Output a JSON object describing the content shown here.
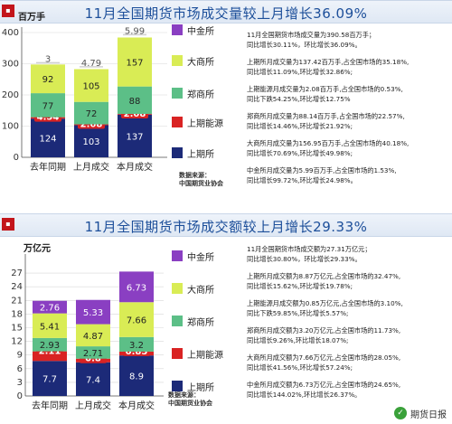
{
  "colors": {
    "shfe": "#1c2a78",
    "ine": "#d92323",
    "dce": "#d9ec55",
    "czce": "#5cbf87",
    "cffex": "#8a3fc2",
    "title": "#1d4f9a"
  },
  "charts": [
    {
      "title": "11月全国期货市场成交量较上月增长36.09%",
      "unit": "百万手",
      "source": [
        "数据来源：",
        "中国期货业协会"
      ],
      "notes": [
        [
          "11月全国期货市场成交量为390.58百万手；",
          "同比增长30.11%，环比增长36.09%。"
        ],
        [
          "上期所月成交量为137.42百万手,占全国市场的35.18%,",
          "同比增长11.09%,环比增长32.86%;"
        ],
        [
          "上期能源月成交量为2.08百万手,占全国市场的0.53%,",
          "同比下跌54.25%,环比增长12.75%"
        ],
        [
          "郑商所月成交量为88.14百万手,占全国市场的22.57%,",
          "同比增长14.46%,环比增长21.92%;"
        ],
        [
          "大商所月成交量为156.95百万手,占全国市场的40.18%,",
          "同比增长70.69%,环比增长49.98%;"
        ],
        [
          "中金所月成交量为5.99百万手,占全国市场的1.53%,",
          "同比增长99.72%,环比增长24.98%。"
        ]
      ]
    },
    {
      "title": "11月全国期货市场成交额较上月增长29.33%",
      "unit": "万亿元",
      "source": [
        "数据来源：",
        "中国期货业协会"
      ],
      "notes": [
        [
          "11月全国期货市场成交额为27.31万亿元；",
          "同比增长30.80%，环比增长29.33%。"
        ],
        [
          "上期所月成交额为8.87万亿元,占全国市场的32.47%,",
          "同比增长15.62%,环比增长19.78%;"
        ],
        [
          "上期能源月成交额为0.85万亿元,占全国市场的3.10%,",
          "同比下跌59.85%,环比增长5.57%;"
        ],
        [
          "郑商所月成交额为3.20万亿元,占全国市场的11.73%,",
          "同比增长9.26%,环比增长18.07%;"
        ],
        [
          "大商所月成交额为7.66万亿元,占全国市场的28.05%,",
          "同比增长41.56%,环比增长57.24%;"
        ],
        [
          "中金所月成交额为6.73万亿元,占全国市场的24.65%,",
          "同比增长144.02%,环比增长26.37%。"
        ]
      ]
    }
  ],
  "watermark": "期货日报",
  "chart_data": [
    {
      "type": "bar",
      "stacked": true,
      "title": "11月全国期货市场成交量较上月增长36.09%",
      "ylabel": "百万手",
      "ylim": [
        0,
        400
      ],
      "yticks": [
        0,
        100,
        200,
        300,
        400
      ],
      "categories": [
        "去年同期",
        "上月成交",
        "本月成交"
      ],
      "series": [
        {
          "name": "上期所",
          "key": "shfe",
          "values": [
            124,
            103,
            137
          ]
        },
        {
          "name": "上期能源",
          "key": "ine",
          "values": [
            4.54,
            2.68,
            2.08
          ]
        },
        {
          "name": "郑商所",
          "key": "czce",
          "values": [
            77,
            72,
            88
          ]
        },
        {
          "name": "大商所",
          "key": "dce",
          "values": [
            92,
            105,
            157
          ]
        },
        {
          "name": "中金所",
          "key": "cffex",
          "values": [
            3.0,
            4.79,
            5.99
          ]
        }
      ],
      "legend_order": [
        "中金所",
        "大商所",
        "郑商所",
        "上期能源",
        "上期所"
      ],
      "legend_position": "right"
    },
    {
      "type": "bar",
      "stacked": true,
      "title": "11月全国期货市场成交额较上月增长29.33%",
      "ylabel": "万亿元",
      "ylim": [
        0,
        30
      ],
      "yticks": [
        0,
        3,
        6,
        9,
        12,
        15,
        18,
        21,
        24,
        27
      ],
      "categories": [
        "去年同期",
        "上月成交",
        "本月成交"
      ],
      "series": [
        {
          "name": "上期所",
          "key": "shfe",
          "values": [
            7.7,
            7.4,
            8.9
          ]
        },
        {
          "name": "上期能源",
          "key": "ine",
          "values": [
            2.11,
            0.8,
            0.85
          ]
        },
        {
          "name": "郑商所",
          "key": "czce",
          "values": [
            2.93,
            2.71,
            3.2
          ]
        },
        {
          "name": "大商所",
          "key": "dce",
          "values": [
            5.41,
            4.87,
            7.66
          ]
        },
        {
          "name": "中金所",
          "key": "cffex",
          "values": [
            2.76,
            5.33,
            6.73
          ]
        }
      ],
      "legend_order": [
        "中金所",
        "大商所",
        "郑商所",
        "上期能源",
        "上期所"
      ],
      "legend_position": "right"
    }
  ]
}
